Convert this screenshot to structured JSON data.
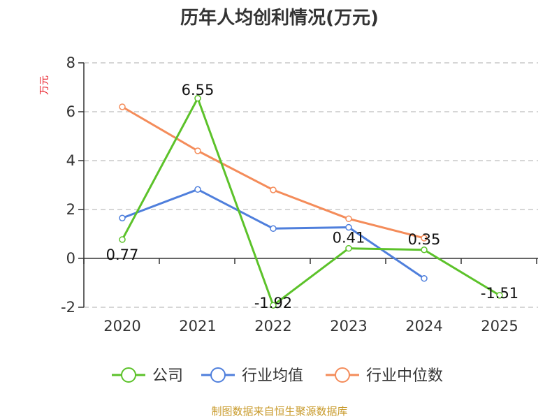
{
  "chart_data": {
    "type": "line",
    "title": "历年人均创利情况(万元)",
    "ylabel": "万元",
    "xlabel": "",
    "categories": [
      "2020",
      "2021",
      "2022",
      "2023",
      "2024",
      "2025"
    ],
    "ylim": [
      -2,
      8
    ],
    "yticks": [
      -2,
      0,
      2,
      4,
      6,
      8
    ],
    "grid": true,
    "legend_position": "bottom",
    "series": [
      {
        "name": "公司",
        "color": "#5cc22a",
        "values": [
          0.77,
          6.55,
          -1.92,
          0.41,
          0.35,
          -1.51
        ],
        "labels": [
          "0.77",
          "6.55",
          "-1.92",
          "0.41",
          "0.35",
          "-1.51"
        ]
      },
      {
        "name": "行业均值",
        "color": "#4f7fdc",
        "values": [
          1.65,
          2.82,
          1.22,
          1.27,
          -0.82,
          null
        ]
      },
      {
        "name": "行业中位数",
        "color": "#f48c5a",
        "values": [
          6.2,
          4.4,
          2.8,
          1.62,
          0.83,
          null
        ]
      }
    ]
  },
  "colors": {
    "ylabel": "#e8202a",
    "footer": "#c89a2a",
    "axis": "#333333",
    "grid": "#c8c8c8"
  },
  "footer": "制图数据来自恒生聚源数据库"
}
